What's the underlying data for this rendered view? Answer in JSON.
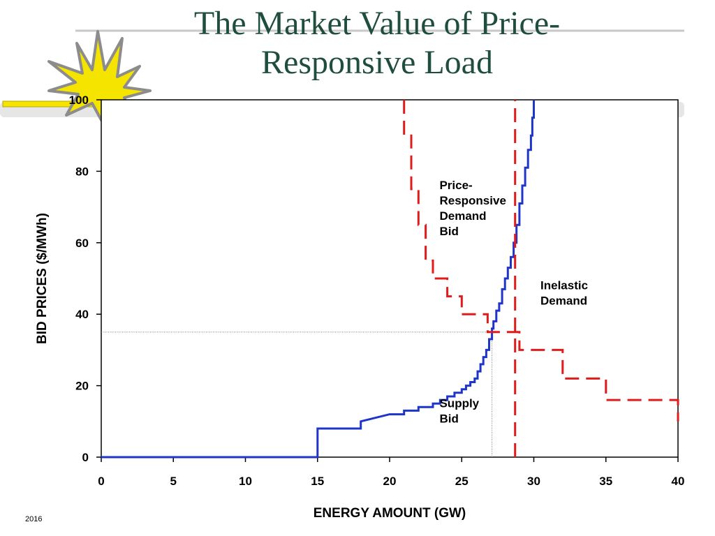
{
  "slide": {
    "title_line1": "The Market Value of Price-",
    "title_line2": "Responsive Load",
    "year": "2016"
  },
  "chart_data": {
    "type": "line",
    "xlabel": "ENERGY AMOUNT (GW)",
    "ylabel": "BID PRICES ($/MWh)",
    "xlim": [
      0,
      40
    ],
    "ylim": [
      0,
      100
    ],
    "x_ticks": [
      0,
      5,
      10,
      15,
      20,
      25,
      30,
      35,
      40
    ],
    "y_ticks": [
      0,
      20,
      40,
      60,
      80,
      100
    ],
    "grid": false,
    "series": [
      {
        "key": "supply",
        "color": "#1f35c9",
        "style": "solid",
        "points": [
          [
            0,
            0
          ],
          [
            15,
            0
          ],
          [
            15,
            8
          ],
          [
            18,
            8
          ],
          [
            18,
            10
          ],
          [
            20,
            12
          ],
          [
            21,
            12
          ],
          [
            21,
            13
          ],
          [
            22,
            13
          ],
          [
            22,
            14
          ],
          [
            23,
            14
          ],
          [
            23,
            15
          ],
          [
            23.5,
            15
          ],
          [
            23.5,
            16
          ],
          [
            24,
            16
          ],
          [
            24,
            17
          ],
          [
            24.5,
            17
          ],
          [
            24.5,
            18
          ],
          [
            25,
            18
          ],
          [
            25,
            19
          ],
          [
            25.3,
            19
          ],
          [
            25.3,
            20
          ],
          [
            25.6,
            20
          ],
          [
            25.6,
            21
          ],
          [
            25.9,
            21
          ],
          [
            25.9,
            22
          ],
          [
            26.1,
            22
          ],
          [
            26.1,
            24
          ],
          [
            26.3,
            24
          ],
          [
            26.3,
            26
          ],
          [
            26.5,
            26
          ],
          [
            26.5,
            28
          ],
          [
            26.7,
            28
          ],
          [
            26.7,
            30
          ],
          [
            26.9,
            30
          ],
          [
            26.9,
            33
          ],
          [
            27.1,
            33
          ],
          [
            27.1,
            36
          ],
          [
            27.2,
            36
          ],
          [
            27.2,
            38
          ],
          [
            27.4,
            38
          ],
          [
            27.4,
            41
          ],
          [
            27.6,
            41
          ],
          [
            27.6,
            43
          ],
          [
            27.8,
            43
          ],
          [
            27.8,
            47
          ],
          [
            28.0,
            47
          ],
          [
            28.0,
            50
          ],
          [
            28.2,
            50
          ],
          [
            28.2,
            53
          ],
          [
            28.4,
            53
          ],
          [
            28.4,
            56
          ],
          [
            28.6,
            56
          ],
          [
            28.6,
            60
          ],
          [
            28.8,
            60
          ],
          [
            28.8,
            65
          ],
          [
            29.0,
            65
          ],
          [
            29.0,
            71
          ],
          [
            29.2,
            71
          ],
          [
            29.2,
            76
          ],
          [
            29.4,
            76
          ],
          [
            29.4,
            81
          ],
          [
            29.6,
            81
          ],
          [
            29.6,
            86
          ],
          [
            29.8,
            86
          ],
          [
            29.8,
            90
          ],
          [
            29.9,
            90
          ],
          [
            29.9,
            95
          ],
          [
            30.0,
            95
          ],
          [
            30.0,
            100
          ]
        ]
      },
      {
        "key": "price_responsive_demand",
        "color": "#e01b1b",
        "style": "dashed",
        "points": [
          [
            21,
            100
          ],
          [
            21,
            90
          ],
          [
            21.5,
            90
          ],
          [
            21.5,
            75
          ],
          [
            22,
            75
          ],
          [
            22,
            65
          ],
          [
            22.5,
            65
          ],
          [
            22.5,
            55
          ],
          [
            23,
            55
          ],
          [
            23,
            50
          ],
          [
            24,
            50
          ],
          [
            24,
            45
          ],
          [
            25,
            45
          ],
          [
            25,
            40
          ],
          [
            26.8,
            40
          ],
          [
            26.8,
            35
          ],
          [
            29,
            35
          ],
          [
            29,
            30
          ],
          [
            32,
            30
          ],
          [
            32,
            22
          ],
          [
            35,
            22
          ],
          [
            35,
            16
          ],
          [
            40,
            16
          ],
          [
            40,
            10
          ]
        ]
      },
      {
        "key": "inelastic_demand",
        "color": "#e01b1b",
        "style": "dashed",
        "points": [
          [
            28.7,
            0
          ],
          [
            28.7,
            100
          ]
        ]
      }
    ],
    "reference_lines": [
      {
        "key": "clearing_price",
        "points": [
          [
            0,
            35
          ],
          [
            27.1,
            35
          ]
        ]
      },
      {
        "key": "clearing_quantity",
        "points": [
          [
            27.1,
            0
          ],
          [
            27.1,
            35
          ]
        ]
      }
    ],
    "annotations": [
      {
        "key": "price_responsive",
        "lines": [
          "Price-",
          "Responsive",
          "Demand",
          "Bid"
        ],
        "at": [
          31.5,
          75
        ]
      },
      {
        "key": "inelastic",
        "lines": [
          "Inelastic",
          "Demand"
        ],
        "at": [
          38.5,
          47
        ]
      },
      {
        "key": "supply",
        "lines": [
          "Supply",
          "Bid"
        ],
        "at": [
          31.5,
          14
        ]
      }
    ]
  }
}
